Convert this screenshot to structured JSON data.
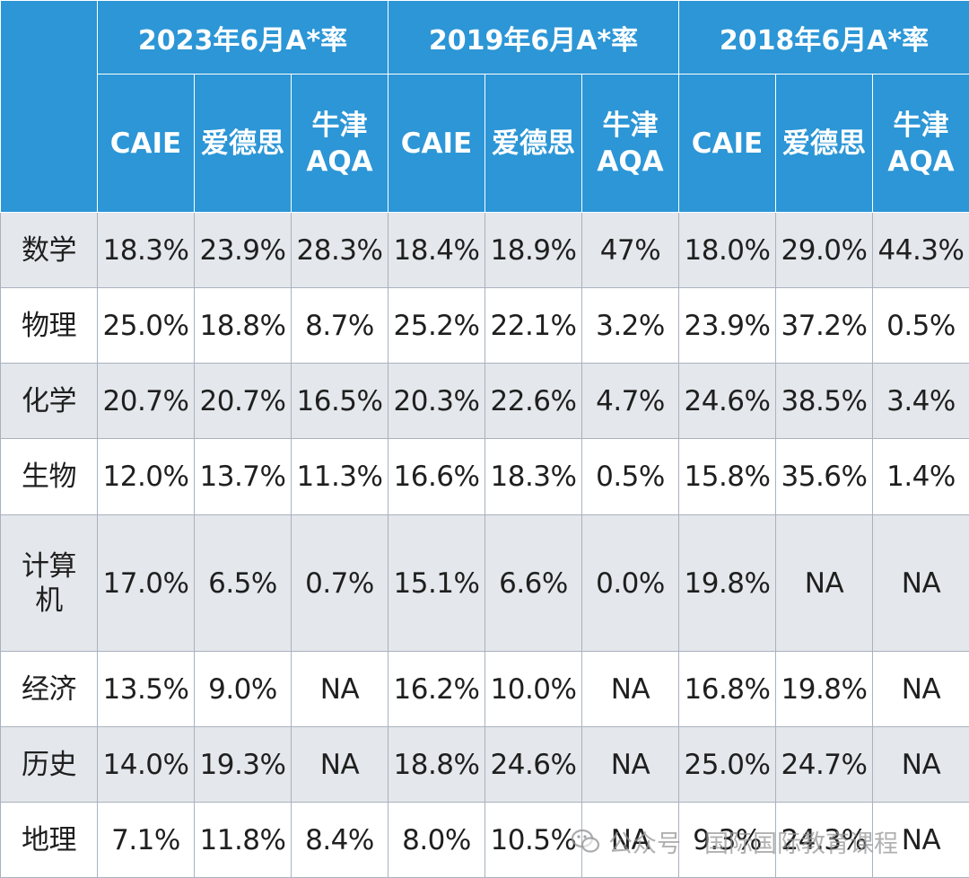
{
  "header": {
    "years": [
      "2023年6月A*率",
      "2019年6月A*率",
      "2018年6月A*率"
    ],
    "providers": [
      "CAIE",
      "爱德思",
      "牛津AQA"
    ]
  },
  "rows": [
    {
      "subject": "数学",
      "values": [
        "18.3%",
        "23.9%",
        "28.3%",
        "18.4%",
        "18.9%",
        "47%",
        "18.0%",
        "29.0%",
        "44.3%"
      ]
    },
    {
      "subject": "物理",
      "values": [
        "25.0%",
        "18.8%",
        "8.7%",
        "25.2%",
        "22.1%",
        "3.2%",
        "23.9%",
        "37.2%",
        "0.5%"
      ]
    },
    {
      "subject": "化学",
      "values": [
        "20.7%",
        "20.7%",
        "16.5%",
        "20.3%",
        "22.6%",
        "4.7%",
        "24.6%",
        "38.5%",
        "3.4%"
      ]
    },
    {
      "subject": "生物",
      "values": [
        "12.0%",
        "13.7%",
        "11.3%",
        "16.6%",
        "18.3%",
        "0.5%",
        "15.8%",
        "35.6%",
        "1.4%"
      ]
    },
    {
      "subject": "计算机",
      "values": [
        "17.0%",
        "6.5%",
        "0.7%",
        "15.1%",
        "6.6%",
        "0.0%",
        "19.8%",
        "NA",
        "NA"
      ]
    },
    {
      "subject": "经济",
      "values": [
        "13.5%",
        "9.0%",
        "NA",
        "16.2%",
        "10.0%",
        "NA",
        "16.8%",
        "19.8%",
        "NA"
      ]
    },
    {
      "subject": "历史",
      "values": [
        "14.0%",
        "19.3%",
        "NA",
        "18.8%",
        "24.6%",
        "NA",
        "25.0%",
        "24.7%",
        "NA"
      ]
    },
    {
      "subject": "地理",
      "values": [
        "7.1%",
        "11.8%",
        "8.4%",
        "8.0%",
        "10.5%",
        "NA",
        "9.3%",
        "24.3%",
        "NA"
      ]
    }
  ],
  "watermark": {
    "prefix": "公众号",
    "name": "国际国际教育课程"
  },
  "colors": {
    "header_bg": "#2c96d6",
    "row_shade": "#e4e7eb",
    "row_plain": "#ffffff"
  }
}
